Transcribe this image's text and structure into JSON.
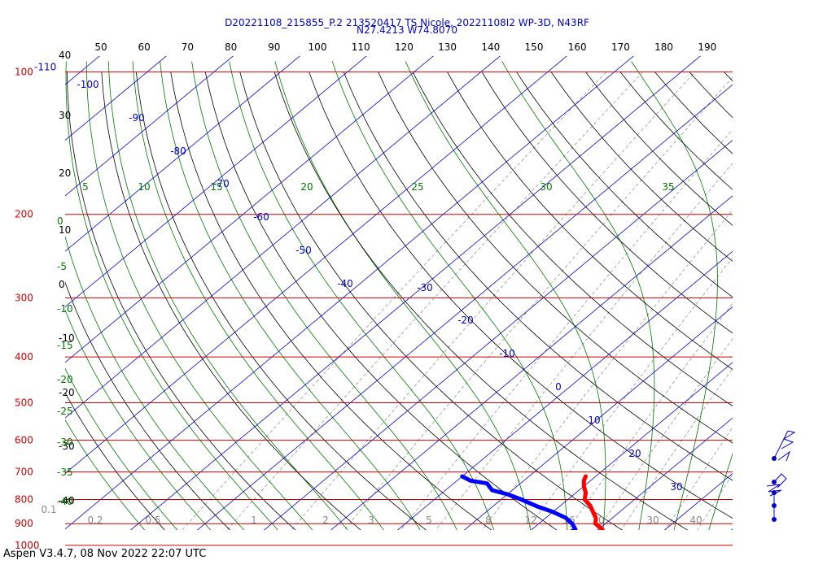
{
  "header": {
    "title_line1": "D20221108_215855_P.2 213520417 TS Nicole, 20221108I2 WP-3D, N43RF",
    "title_line2": "N27.4213 W74.8070"
  },
  "footer": {
    "text": "Aspen V3.4.7, 08 Nov 2022  22:07 UTC"
  },
  "colors": {
    "isobar": "#cc0000",
    "isotherm": "#0000cc",
    "dry_adiabat": "#000000",
    "moist_adiabat": "#007700",
    "mixing_ratio": "#888888",
    "temperature": "#ff0000",
    "dewpoint": "#0000ff",
    "wind_barb": "#0000cc"
  },
  "chart_data": {
    "type": "skew-T log-P",
    "grid": true,
    "top_axis_labels": [
      "50",
      "60",
      "70",
      "80",
      "90",
      "100",
      "110",
      "120",
      "130",
      "140",
      "150",
      "160",
      "170",
      "180",
      "190"
    ],
    "pressure_levels": [
      {
        "p": 100,
        "label": "100"
      },
      {
        "p": 200,
        "label": "200"
      },
      {
        "p": 300,
        "label": "300"
      },
      {
        "p": 400,
        "label": "400"
      },
      {
        "p": 500,
        "label": "500"
      },
      {
        "p": 600,
        "label": "600"
      },
      {
        "p": 700,
        "label": "700"
      },
      {
        "p": 800,
        "label": "800"
      },
      {
        "p": 900,
        "label": "900"
      },
      {
        "p": 1000,
        "label": "1000"
      }
    ],
    "extra_left_label": "-110",
    "black_left_labels": [
      "40",
      "30",
      "20",
      "10",
      "0",
      "-10",
      "-20",
      "-30",
      "-40"
    ],
    "green_left_labels": [
      "0",
      "-5",
      "-10",
      "-15",
      "-20",
      "-25",
      "-30",
      "-35",
      "-40"
    ],
    "green_top_labels": [
      "5",
      "10",
      "15",
      "20",
      "25",
      "30",
      "35"
    ],
    "isotherm_labels": [
      "-100",
      "-90",
      "-80",
      "-70",
      "-60",
      "-50",
      "-40",
      "-30",
      "-20",
      "-10",
      "0",
      "10",
      "20",
      "30"
    ],
    "mixing_ratio_labels": [
      "0.1",
      "0.2",
      "0.5",
      "1",
      "2",
      "3",
      "5",
      "8",
      "12",
      "16",
      "20",
      "30",
      "40"
    ],
    "temperature_profile": [
      {
        "p": 1000,
        "t": 25.5
      },
      {
        "p": 990,
        "t": 24.5
      },
      {
        "p": 975,
        "t": 23.0
      },
      {
        "p": 950,
        "t": 22.0
      },
      {
        "p": 925,
        "t": 20.5
      },
      {
        "p": 900,
        "t": 18.5
      },
      {
        "p": 875,
        "t": 17.5
      },
      {
        "p": 850,
        "t": 16.0
      },
      {
        "p": 825,
        "t": 14.5
      },
      {
        "p": 800,
        "t": 12.5
      },
      {
        "p": 775,
        "t": 11.5
      },
      {
        "p": 750,
        "t": 10.0
      },
      {
        "p": 730,
        "t": 9.0
      },
      {
        "p": 715,
        "t": 8.5
      }
    ],
    "dewpoint_profile": [
      {
        "p": 1000,
        "t": 21.5
      },
      {
        "p": 980,
        "t": 20.0
      },
      {
        "p": 960,
        "t": 17.0
      },
      {
        "p": 950,
        "t": 16.0
      },
      {
        "p": 925,
        "t": 16.5
      },
      {
        "p": 900,
        "t": 15.0
      },
      {
        "p": 875,
        "t": 13.0
      },
      {
        "p": 850,
        "t": 10.0
      },
      {
        "p": 830,
        "t": 7.0
      },
      {
        "p": 800,
        "t": 3.0
      },
      {
        "p": 780,
        "t": 0.0
      },
      {
        "p": 765,
        "t": -3.0
      },
      {
        "p": 740,
        "t": -5.0
      },
      {
        "p": 730,
        "t": -8.0
      },
      {
        "p": 715,
        "t": -10.0
      }
    ]
  }
}
